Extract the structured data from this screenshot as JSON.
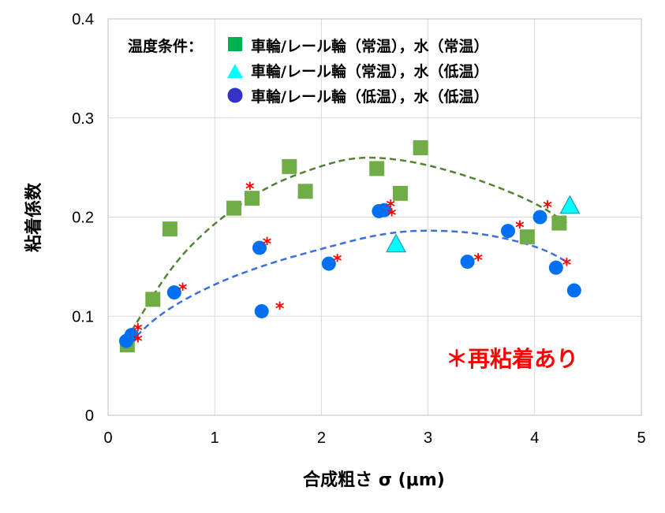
{
  "chart_data": {
    "type": "scatter",
    "xlabel": "合成粗さ σ (μm)",
    "ylabel": "粘着係数",
    "xlim": [
      0,
      5
    ],
    "ylim": [
      0,
      0.4
    ],
    "x_ticks": [
      "0",
      "1",
      "2",
      "3",
      "4",
      "5"
    ],
    "y_ticks": [
      "0",
      "0.1",
      "0.2",
      "0.3",
      "0.4"
    ],
    "grid": true,
    "legend": {
      "title": "温度条件：",
      "placement": "top-left"
    },
    "series": [
      {
        "name": "車輪/レール輪（常温），水（常温）",
        "marker": "square",
        "color": "#70ad47",
        "points": [
          [
            0.18,
            0.071
          ],
          [
            0.42,
            0.117
          ],
          [
            0.58,
            0.188
          ],
          [
            1.18,
            0.209
          ],
          [
            1.35,
            0.219
          ],
          [
            1.7,
            0.251
          ],
          [
            1.85,
            0.226
          ],
          [
            2.52,
            0.249
          ],
          [
            2.74,
            0.224
          ],
          [
            2.93,
            0.27
          ],
          [
            3.93,
            0.18
          ],
          [
            4.23,
            0.194
          ]
        ]
      },
      {
        "name": "車輪/レール輪（常温），水（低温）",
        "marker": "triangle",
        "color": "#00ffff",
        "points": [
          [
            2.7,
            0.172
          ],
          [
            4.33,
            0.211
          ]
        ]
      },
      {
        "name": "車輪/レール輪（低温），水（低温）",
        "marker": "circle",
        "color": "#0070f0",
        "points": [
          [
            0.17,
            0.075
          ],
          [
            0.22,
            0.081
          ],
          [
            0.62,
            0.124
          ],
          [
            1.42,
            0.169
          ],
          [
            1.44,
            0.105
          ],
          [
            2.07,
            0.153
          ],
          [
            2.54,
            0.206
          ],
          [
            2.59,
            0.207
          ],
          [
            3.37,
            0.155
          ],
          [
            3.75,
            0.186
          ],
          [
            4.05,
            0.2
          ],
          [
            4.2,
            0.149
          ],
          [
            4.37,
            0.126
          ]
        ]
      }
    ],
    "trend_lines": [
      {
        "color": "#548235",
        "style": "dashed",
        "points": [
          [
            0.22,
            0.085
          ],
          [
            0.6,
            0.152
          ],
          [
            1.0,
            0.195
          ],
          [
            1.5,
            0.232
          ],
          [
            2.0,
            0.252
          ],
          [
            2.3,
            0.26
          ],
          [
            2.6,
            0.26
          ],
          [
            3.0,
            0.253
          ],
          [
            3.5,
            0.237
          ],
          [
            4.0,
            0.215
          ],
          [
            4.3,
            0.194
          ]
        ]
      },
      {
        "color": "#3b6fe0",
        "style": "dashed",
        "points": [
          [
            0.2,
            0.073
          ],
          [
            0.5,
            0.104
          ],
          [
            1.0,
            0.133
          ],
          [
            1.5,
            0.153
          ],
          [
            2.0,
            0.168
          ],
          [
            2.5,
            0.182
          ],
          [
            2.9,
            0.187
          ],
          [
            3.4,
            0.185
          ],
          [
            3.8,
            0.177
          ],
          [
            4.1,
            0.167
          ],
          [
            4.3,
            0.155
          ]
        ]
      }
    ],
    "readhesion_marks": {
      "symbol": "*",
      "color": "#ff0000",
      "points": [
        [
          0.28,
          0.087
        ],
        [
          0.28,
          0.076
        ],
        [
          0.7,
          0.128
        ],
        [
          1.33,
          0.23
        ],
        [
          1.49,
          0.174
        ],
        [
          1.61,
          0.109
        ],
        [
          2.15,
          0.157
        ],
        [
          2.65,
          0.212
        ],
        [
          2.66,
          0.203
        ],
        [
          3.47,
          0.158
        ],
        [
          3.86,
          0.191
        ],
        [
          4.12,
          0.211
        ],
        [
          4.3,
          0.153
        ]
      ]
    },
    "annotation": "＊再粘着あり"
  }
}
